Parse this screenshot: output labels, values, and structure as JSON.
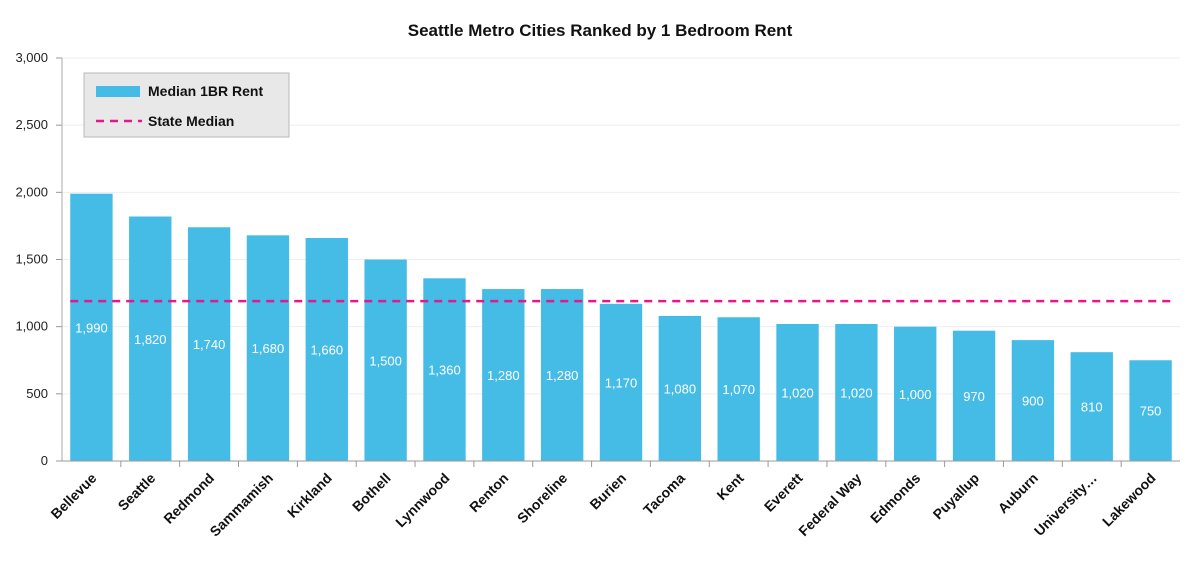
{
  "chart_data": {
    "type": "bar",
    "title": "Seattle Metro Cities Ranked by 1 Bedroom Rent",
    "categories": [
      "Bellevue",
      "Seattle",
      "Redmond",
      "Sammamish",
      "Kirkland",
      "Bothell",
      "Lynnwood",
      "Renton",
      "Shoreline",
      "Burien",
      "Tacoma",
      "Kent",
      "Everett",
      "Federal Way",
      "Edmonds",
      "Puyallup",
      "Auburn",
      "University…",
      "Lakewood"
    ],
    "series": [
      {
        "name": "Median 1BR Rent",
        "values": [
          1990,
          1820,
          1740,
          1680,
          1660,
          1500,
          1360,
          1280,
          1280,
          1170,
          1080,
          1070,
          1020,
          1020,
          1000,
          970,
          900,
          810,
          750
        ],
        "labels": [
          "1,990",
          "1,820",
          "1,740",
          "1,680",
          "1,660",
          "1,500",
          "1,360",
          "1,280",
          "1,280",
          "1,170",
          "1,080",
          "1,070",
          "1,020",
          "1,020",
          "1,000",
          "970",
          "900",
          "810",
          "750"
        ],
        "color": "#45BCE5"
      }
    ],
    "reference_line": {
      "name": "State Median",
      "value": 1190,
      "color": "#E8168C",
      "style": "dashed"
    },
    "ylim": [
      0,
      3000
    ],
    "yticks": [
      0,
      500,
      1000,
      1500,
      2000,
      2500,
      3000
    ],
    "ytick_labels": [
      "0",
      "500",
      "1,000",
      "1,500",
      "2,000",
      "2,500",
      "3,000"
    ],
    "xlabel": "",
    "ylabel": "",
    "grid": true,
    "legend_position": "top-left"
  }
}
